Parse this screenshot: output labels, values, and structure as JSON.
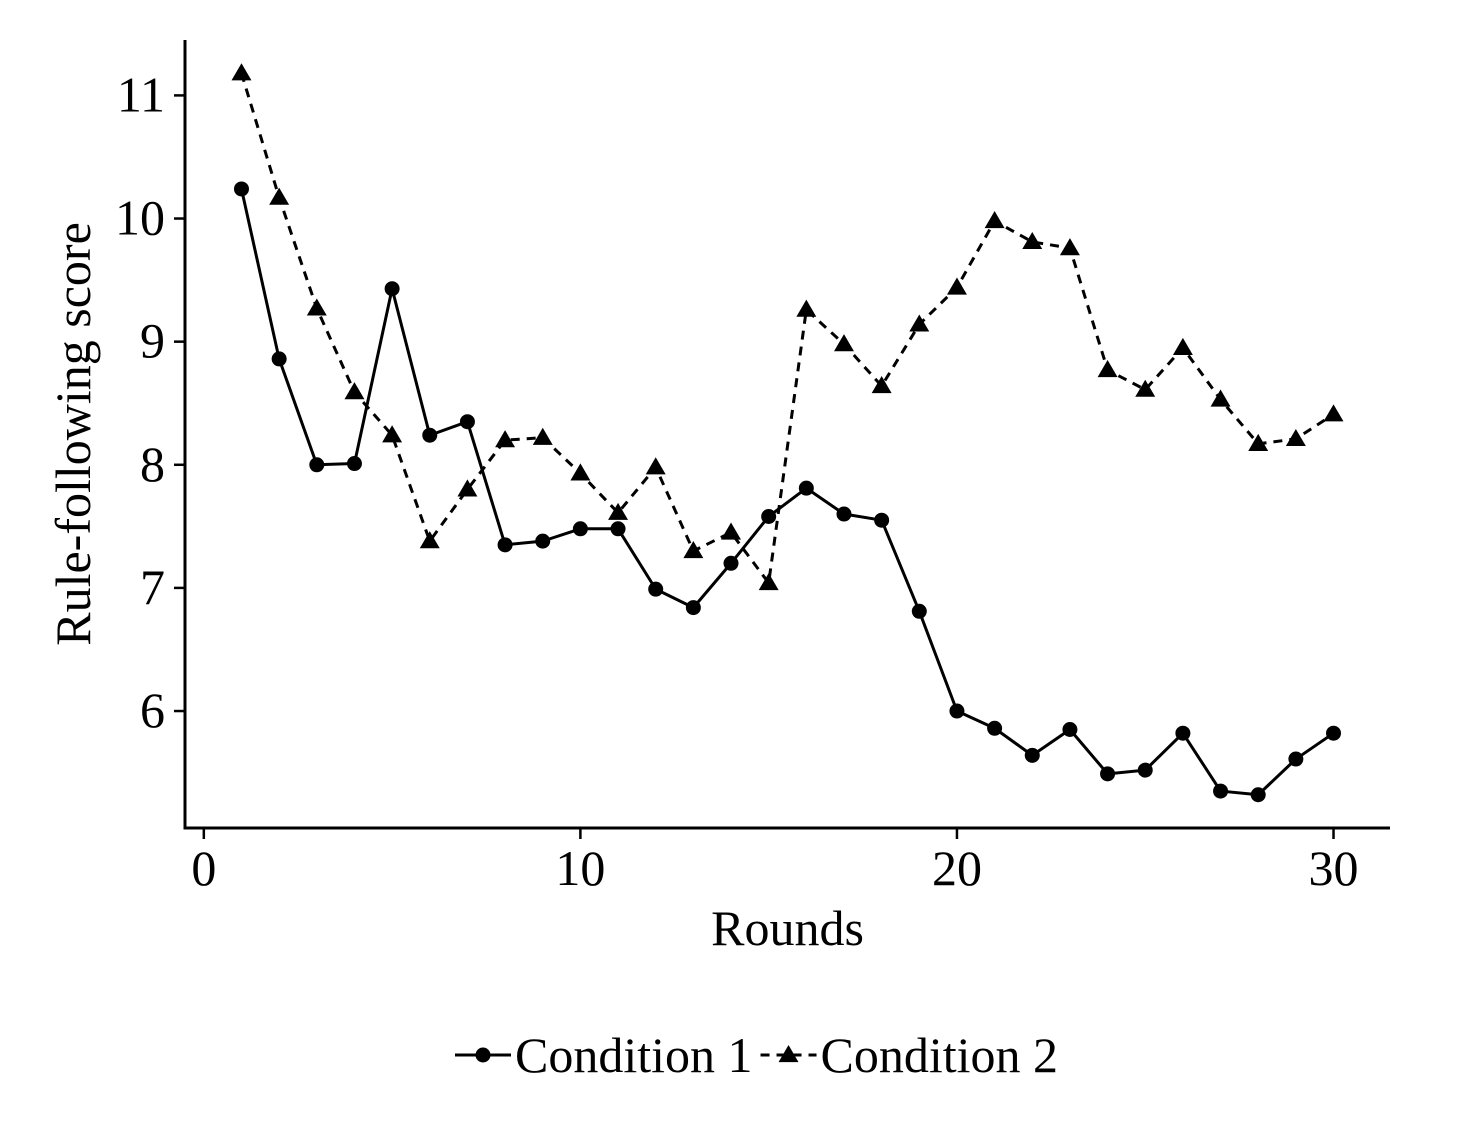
{
  "chart_data": {
    "type": "line",
    "title": "",
    "xlabel": "Rounds",
    "ylabel": "Rule-following score",
    "xlim": [
      -0.5,
      31.5
    ],
    "ylim": [
      5.05,
      11.45
    ],
    "x_ticks": [
      0,
      10,
      20,
      30
    ],
    "y_ticks": [
      6,
      7,
      8,
      9,
      10,
      11
    ],
    "grid": false,
    "legend_position": "bottom",
    "x": [
      1,
      2,
      3,
      4,
      5,
      6,
      7,
      8,
      9,
      10,
      11,
      12,
      13,
      14,
      15,
      16,
      17,
      18,
      19,
      20,
      21,
      22,
      23,
      24,
      25,
      26,
      27,
      28,
      29,
      30
    ],
    "series": [
      {
        "name": "Condition 1",
        "marker": "circle",
        "line_style": "solid",
        "color": "#000000",
        "values": [
          10.24,
          8.86,
          8.0,
          8.01,
          9.43,
          8.24,
          8.35,
          7.35,
          7.38,
          7.48,
          7.48,
          6.99,
          6.84,
          7.2,
          7.58,
          7.81,
          7.6,
          7.55,
          6.81,
          6.0,
          5.86,
          5.64,
          5.85,
          5.49,
          5.52,
          5.82,
          5.35,
          5.32,
          5.61,
          5.82
        ]
      },
      {
        "name": "Condition 2",
        "marker": "triangle",
        "line_style": "dashed",
        "color": "#000000",
        "values": [
          11.18,
          10.17,
          9.27,
          8.59,
          8.24,
          7.38,
          7.8,
          8.2,
          8.22,
          7.93,
          7.61,
          7.98,
          7.3,
          7.45,
          7.04,
          9.26,
          8.98,
          8.64,
          9.14,
          9.44,
          9.98,
          9.81,
          9.76,
          8.77,
          8.61,
          8.95,
          8.53,
          8.17,
          8.21,
          8.41
        ]
      }
    ]
  }
}
